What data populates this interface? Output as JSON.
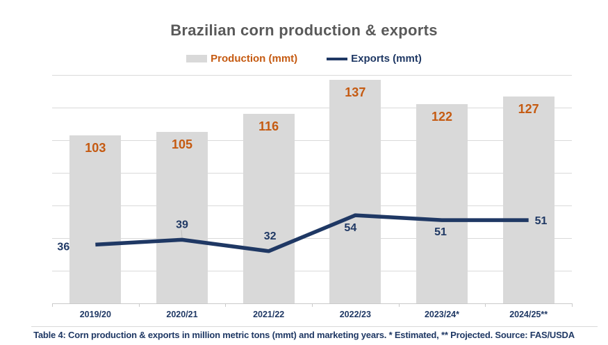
{
  "header": {
    "title": "Brazilian corn production & exports"
  },
  "legend": {
    "items": [
      {
        "label": "Production (mmt)",
        "swatch": "gray-bar-swatch"
      },
      {
        "label": "Exports (mmt)",
        "swatch": "navy-line-swatch"
      }
    ]
  },
  "footer": {
    "caption": "Table 4: Corn production & exports in million metric tons (mmt) and marketing years. * Estimated, ** Projected. Source: FAS/USDA"
  },
  "colors": {
    "production_bar": "#D9D9D9",
    "production_label": "#C55A11",
    "exports_line": "#1F3864",
    "title_text": "#595959",
    "axis_text": "#1F3864",
    "gridline": "#D9D9D9",
    "axis_line": "#C9C9C9",
    "background": "#FFFFFF"
  },
  "chart_data": {
    "type": "combo",
    "title": "Brazilian corn production & exports",
    "categories": [
      "2019/20",
      "2020/21",
      "2021/22",
      "2022/23",
      "2023/24*",
      "2024/25**"
    ],
    "series": [
      {
        "name": "Production (mmt)",
        "type": "bar",
        "values": [
          103,
          105,
          116,
          137,
          122,
          127
        ],
        "color": "#D9D9D9",
        "label_color": "#C55A11"
      },
      {
        "name": "Exports (mmt)",
        "type": "line",
        "values": [
          36,
          39,
          32,
          54,
          51,
          51
        ],
        "color": "#1F3864"
      }
    ],
    "xlabel": "",
    "ylabel": "",
    "ylim": [
      0,
      140
    ],
    "gridline_step": 20,
    "grid": "horizontal",
    "y_axis_labels": false,
    "data_labels": true,
    "legend_position": "top"
  }
}
